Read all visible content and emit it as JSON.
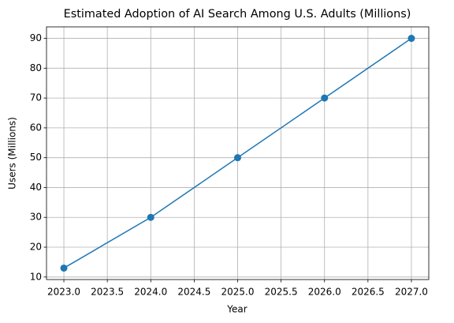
{
  "chart_data": {
    "type": "line",
    "title": "Estimated Adoption of AI Search Among U.S. Adults (Millions)",
    "x_label": "Year",
    "y_label": "Users (Millions)",
    "x": [
      2023,
      2024,
      2025,
      2026,
      2027
    ],
    "values": [
      13,
      30,
      50,
      70,
      90
    ],
    "color": "#1f77b4",
    "xlim": [
      2022.8,
      2027.2
    ],
    "xticks": [
      {
        "value": 2023,
        "label": "2023.0"
      },
      {
        "value": 2023.5,
        "label": "2023.5"
      },
      {
        "value": 2024,
        "label": "2024.0"
      },
      {
        "value": 2024.5,
        "label": "2024.5"
      },
      {
        "value": 2025,
        "label": "2025.0"
      },
      {
        "value": 2025.5,
        "label": "2025.5"
      },
      {
        "value": 2026,
        "label": "2026.0"
      },
      {
        "value": 2026.5,
        "label": "2026.5"
      },
      {
        "value": 2027,
        "label": "2027.0"
      }
    ],
    "ylim": [
      9.15,
      93.85
    ],
    "yticks": [
      10,
      20,
      30,
      40,
      50,
      60,
      70,
      80,
      90
    ],
    "grid": true
  }
}
